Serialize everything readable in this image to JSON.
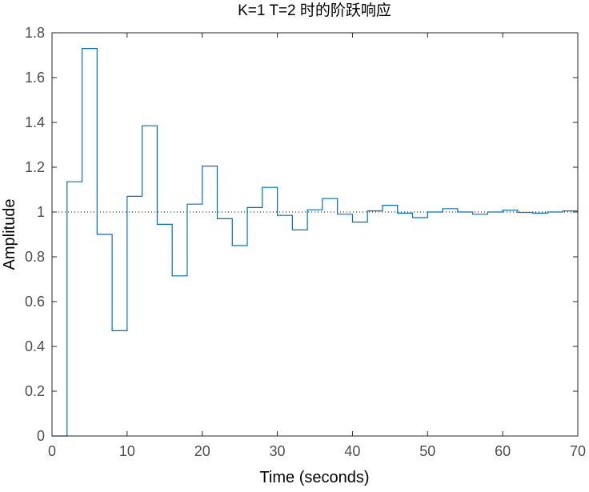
{
  "chart_data": {
    "type": "line",
    "title": "K=1 T=2 时的阶跃响应",
    "xlabel": "Time (seconds)",
    "ylabel": "Amplitude",
    "xlim": [
      0,
      70
    ],
    "ylim": [
      0,
      1.8
    ],
    "x_ticks": [
      0,
      10,
      20,
      30,
      40,
      50,
      60,
      70
    ],
    "y_ticks": [
      0,
      0.2,
      0.4,
      0.6,
      0.8,
      1,
      1.2,
      1.4,
      1.6,
      1.8
    ],
    "grid": false,
    "legend": "none",
    "reference_line": {
      "y": 1,
      "style": "dotted",
      "color": "#000000"
    },
    "series": [
      {
        "color": "#0072bd",
        "style": "stairs",
        "sample_time": 2,
        "x": [
          0,
          2,
          4,
          6,
          8,
          10,
          12,
          14,
          16,
          18,
          20,
          22,
          24,
          26,
          28,
          30,
          32,
          34,
          36,
          38,
          40,
          42,
          44,
          46,
          48,
          50,
          52,
          54,
          56,
          58,
          60,
          62,
          64,
          66,
          68,
          70
        ],
        "y": [
          0,
          1.135,
          1.73,
          0.9,
          0.47,
          1.07,
          1.385,
          0.945,
          0.715,
          1.035,
          1.205,
          0.97,
          0.85,
          1.02,
          1.11,
          0.985,
          0.92,
          1.01,
          1.06,
          0.99,
          0.955,
          1.005,
          1.03,
          0.995,
          0.975,
          1.0,
          1.015,
          1.0,
          0.99,
          1.0,
          1.008,
          0.998,
          0.995,
          1.0,
          1.005,
          1.005
        ]
      }
    ]
  }
}
